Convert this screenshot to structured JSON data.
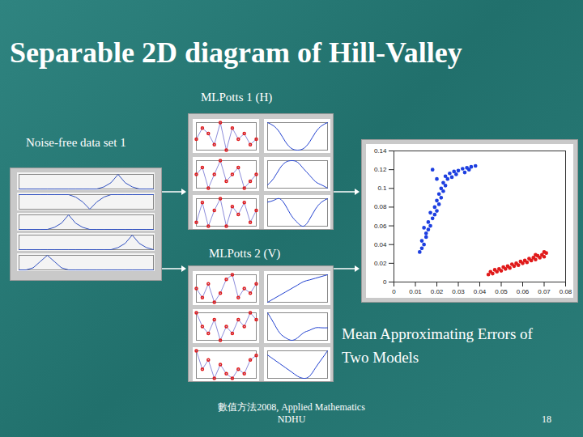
{
  "title": "Separable 2D diagram of Hill-Valley",
  "labels": {
    "model1": "MLPotts 1 (H)",
    "model2": "MLPotts 2 (V)",
    "dataset": "Noise-free data set 1",
    "caption": [
      "Mean Approximating Errors of",
      "Two Models"
    ]
  },
  "footer": {
    "lines": [
      "數值方法2008, Applied Mathematics",
      "NDHU"
    ],
    "page": "18"
  },
  "dataset_panels": [
    [
      0.2,
      0.2,
      0.2,
      0.2,
      0.2,
      0.2,
      0.2,
      0.2,
      0.2,
      0.2,
      0.2,
      0.2,
      0.3,
      0.5,
      0.9,
      0.5,
      0.3,
      0.2,
      0.2,
      0.2
    ],
    [
      0.8,
      0.8,
      0.8,
      0.8,
      0.8,
      0.8,
      0.8,
      0.8,
      0.7,
      0.5,
      0.2,
      0.5,
      0.7,
      0.8,
      0.8,
      0.8,
      0.8,
      0.8,
      0.8,
      0.8
    ],
    [
      0.2,
      0.2,
      0.2,
      0.2,
      0.2,
      0.3,
      0.5,
      0.9,
      0.5,
      0.3,
      0.2,
      0.2,
      0.2,
      0.2,
      0.2,
      0.2,
      0.2,
      0.2,
      0.2,
      0.2
    ],
    [
      0.2,
      0.2,
      0.2,
      0.2,
      0.2,
      0.2,
      0.2,
      0.2,
      0.2,
      0.2,
      0.2,
      0.2,
      0.2,
      0.2,
      0.3,
      0.5,
      0.9,
      0.5,
      0.3,
      0.2
    ],
    [
      0.2,
      0.2,
      0.3,
      0.6,
      0.9,
      0.6,
      0.3,
      0.2,
      0.2,
      0.2,
      0.2,
      0.2,
      0.2,
      0.2,
      0.2,
      0.2,
      0.2,
      0.2,
      0.2,
      0.2
    ]
  ],
  "model1_panels": [
    {
      "points": [
        0.4,
        0.6,
        0.5,
        0.3,
        0.7,
        0.2,
        0.6,
        0.4,
        0.5,
        0.3,
        0.4
      ],
      "fit": [
        0.9,
        0.8,
        0.6,
        0.3,
        0.1,
        0.05,
        0.1,
        0.3,
        0.6,
        0.8,
        0.9
      ]
    },
    {
      "points": [
        0.5,
        0.6,
        0.3,
        0.5,
        0.7,
        0.4,
        0.5,
        0.6,
        0.3,
        0.4,
        0.5
      ],
      "fit": [
        0.2,
        0.4,
        0.7,
        0.9,
        0.95,
        0.9,
        0.7,
        0.5,
        0.3,
        0.2,
        0.1
      ]
    },
    {
      "points": [
        0.3,
        0.8,
        0.2,
        0.6,
        0.9,
        0.2,
        0.7,
        0.5,
        0.8,
        0.3,
        0.6
      ],
      "fit": [
        0.8,
        0.85,
        0.9,
        0.7,
        0.4,
        0.2,
        0.1,
        0.3,
        0.6,
        0.8,
        0.9
      ]
    }
  ],
  "model2_panels": [
    {
      "points": [
        0.6,
        0.4,
        0.7,
        0.3,
        0.5,
        0.8,
        0.9,
        0.4,
        0.6,
        0.5,
        0.7
      ],
      "fit": [
        0.1,
        0.2,
        0.3,
        0.4,
        0.5,
        0.6,
        0.7,
        0.75,
        0.8,
        0.85,
        0.9
      ]
    },
    {
      "points": [
        0.7,
        0.5,
        0.4,
        0.6,
        0.3,
        0.5,
        0.4,
        0.6,
        0.5,
        0.7,
        0.6
      ],
      "fit": [
        0.9,
        0.7,
        0.5,
        0.4,
        0.35,
        0.4,
        0.5,
        0.55,
        0.6,
        0.6,
        0.6
      ]
    },
    {
      "points": [
        0.8,
        0.4,
        0.6,
        0.2,
        0.5,
        0.3,
        0.2,
        0.4,
        0.3,
        0.6,
        0.7
      ],
      "fit": [
        0.7,
        0.6,
        0.5,
        0.4,
        0.3,
        0.2,
        0.15,
        0.2,
        0.4,
        0.6,
        0.8
      ]
    }
  ],
  "chart_data": {
    "type": "scatter",
    "xlim": [
      0,
      0.08
    ],
    "xticks": [
      0,
      0.01,
      0.02,
      0.03,
      0.04,
      0.05,
      0.06,
      0.07,
      0.08
    ],
    "ylim": [
      0,
      0.14
    ],
    "yticks": [
      0,
      0.02,
      0.04,
      0.06,
      0.08,
      0.1,
      0.12,
      0.14
    ],
    "grid": false,
    "series": [
      {
        "color": "#1d3fe0",
        "marker": "circle",
        "x": [
          0.012,
          0.013,
          0.014,
          0.013,
          0.015,
          0.015,
          0.016,
          0.017,
          0.016,
          0.018,
          0.019,
          0.02,
          0.019,
          0.021,
          0.02,
          0.022,
          0.021,
          0.023,
          0.022,
          0.024,
          0.023,
          0.025,
          0.024,
          0.026,
          0.028,
          0.03,
          0.032,
          0.034,
          0.036,
          0.038,
          0.027,
          0.029,
          0.033,
          0.035,
          0.018,
          0.02,
          0.017,
          0.014
        ],
        "y": [
          0.032,
          0.036,
          0.04,
          0.044,
          0.048,
          0.052,
          0.056,
          0.06,
          0.064,
          0.068,
          0.072,
          0.076,
          0.08,
          0.083,
          0.087,
          0.09,
          0.094,
          0.097,
          0.1,
          0.103,
          0.106,
          0.11,
          0.113,
          0.116,
          0.118,
          0.119,
          0.121,
          0.122,
          0.123,
          0.124,
          0.112,
          0.115,
          0.117,
          0.12,
          0.12,
          0.11,
          0.074,
          0.058
        ]
      },
      {
        "color": "#e01a1a",
        "marker": "circle",
        "x": [
          0.044,
          0.045,
          0.046,
          0.047,
          0.048,
          0.049,
          0.05,
          0.051,
          0.052,
          0.053,
          0.054,
          0.055,
          0.056,
          0.057,
          0.058,
          0.059,
          0.06,
          0.061,
          0.062,
          0.063,
          0.064,
          0.065,
          0.066,
          0.067,
          0.068,
          0.069,
          0.07,
          0.071,
          0.07,
          0.066
        ],
        "y": [
          0.008,
          0.011,
          0.009,
          0.013,
          0.011,
          0.014,
          0.012,
          0.016,
          0.014,
          0.017,
          0.015,
          0.019,
          0.017,
          0.02,
          0.018,
          0.022,
          0.02,
          0.023,
          0.021,
          0.025,
          0.023,
          0.026,
          0.024,
          0.028,
          0.026,
          0.029,
          0.027,
          0.031,
          0.032,
          0.029
        ]
      }
    ]
  }
}
